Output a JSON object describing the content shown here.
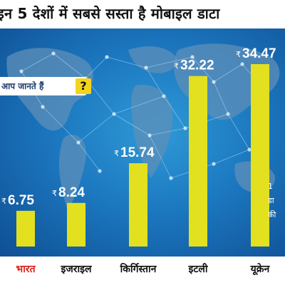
{
  "headline": "इन 5 देशों में सबसे सस्ता है मोबाइल डाटा",
  "quiz": {
    "text": "आप जानते हैं",
    "mark": "?"
  },
  "side_note": {
    "lines": [
      "1",
      "डा",
      "की"
    ]
  },
  "colors": {
    "bar": "#e2e01f",
    "first_label": "#d9241b",
    "background": "#1c78c0"
  },
  "chart_data": {
    "type": "bar",
    "title": "इन 5 देशों में सबसे सस्ता है मोबाइल डाटा",
    "xlabel": "",
    "ylabel": "",
    "categories": [
      "भारत",
      "इजराइल",
      "किर्गिस्तान",
      "इटली",
      "यूक्रेन"
    ],
    "values": [
      6.75,
      8.24,
      15.74,
      32.22,
      34.47
    ],
    "value_labels": [
      "6.75",
      "8.24",
      "15.74",
      "32.22",
      "34.47"
    ],
    "currency_symbol": "₹",
    "ylim": [
      0,
      34.47
    ],
    "grid": false,
    "legend": "none"
  }
}
